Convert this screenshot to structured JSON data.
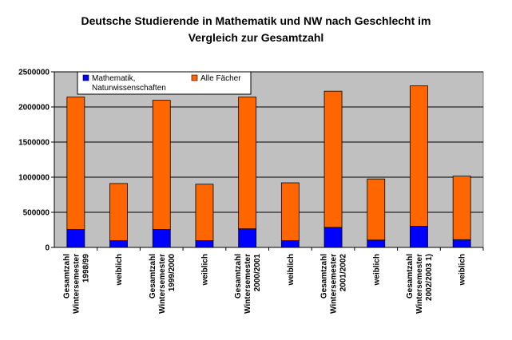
{
  "chart_data": {
    "type": "bar",
    "stacked": true,
    "title_lines": [
      "Deutsche Studierende in Mathematik und NW nach Geschlecht im",
      "Vergleich zur Gesamtzahl"
    ],
    "categories": [
      [
        "Gesamtzahl",
        "Wintersemester",
        "1998/99"
      ],
      [
        "weiblich"
      ],
      [
        "Gesamtzahl",
        "Wintersemester",
        "1999/2000"
      ],
      [
        "weiblich"
      ],
      [
        "Gesamtzahl",
        "Wintersemester",
        "2000/2001"
      ],
      [
        "weiblich"
      ],
      [
        "Gesamtzahl",
        "Wintersemester",
        "2001/2002"
      ],
      [
        "weiblich"
      ],
      [
        "Gesamtzahl",
        "Wintersemester",
        "2002/2003  1)"
      ],
      [
        "weiblich"
      ]
    ],
    "series": [
      {
        "name_lines": [
          "Mathematik,",
          "Naturwissenschaften"
        ],
        "color": "#0000ff",
        "values": [
          255000,
          95000,
          255000,
          95000,
          265000,
          95000,
          285000,
          105000,
          300000,
          110000
        ]
      },
      {
        "name_lines": [
          "Alle Fächer"
        ],
        "color": "#ff6600",
        "values": [
          1885000,
          815000,
          1840000,
          805000,
          1875000,
          825000,
          1940000,
          870000,
          2000000,
          905000
        ]
      }
    ],
    "yticks": [
      "0",
      "500000",
      "1000000",
      "1500000",
      "2000000",
      "2500000"
    ],
    "ylim": [
      0,
      2500000
    ],
    "grid": true,
    "plot_background": "#c0c0c0",
    "legend_position": "top"
  }
}
